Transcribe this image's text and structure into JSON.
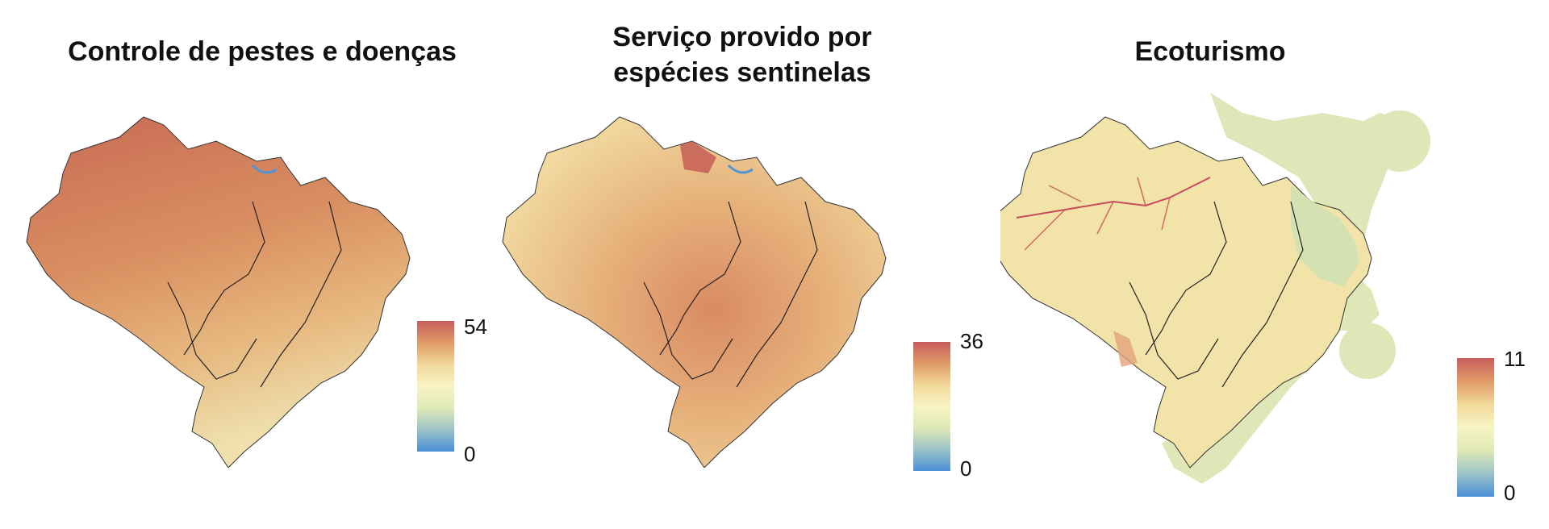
{
  "panels": [
    {
      "title_lines": [
        "Controle de pestes e doenças"
      ],
      "legend": {
        "max": "54",
        "min": "0"
      },
      "colors": {
        "fill": "#d98f61",
        "north": "#c86a54",
        "south": "#efe0ae",
        "water": "#4f95d6"
      }
    },
    {
      "title_lines": [
        "Serviço provido por",
        "espécies sentinelas"
      ],
      "legend": {
        "max": "36",
        "min": "0"
      },
      "colors": {
        "fill": "#ecc98c",
        "north": "#cf8763",
        "south": "#e6b07a",
        "water": "#4f95d6"
      }
    },
    {
      "title_lines": [
        "Ecoturismo"
      ],
      "legend": {
        "max": "11",
        "min": "0"
      },
      "colors": {
        "fill": "#f2e3a8",
        "north": "#efcf97",
        "south": "#f4eab8",
        "water": "#c84a5a",
        "buffer": "#dfe6b8"
      }
    }
  ],
  "legend_gradient": [
    "#c85d5d",
    "#df9b67",
    "#f2d89a",
    "#f7f4c4",
    "#dfe9b6",
    "#9cc3c8",
    "#4a8fd6"
  ]
}
